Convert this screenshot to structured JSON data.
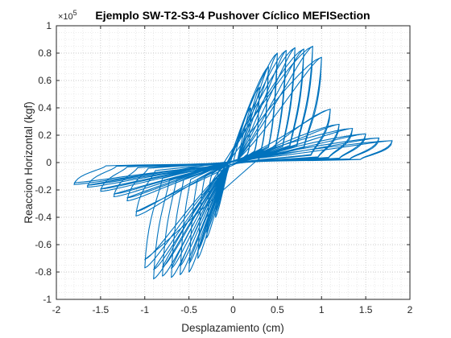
{
  "chart_data": {
    "type": "line",
    "title": "Ejemplo SW-T2-S3-4 Pushover Cíclico MEFISection",
    "xlabel": "Desplazamiento (cm)",
    "ylabel": "Reaccion Horizontal (kgf)",
    "y_exponent_label": "×10",
    "y_exponent_power": "5",
    "xlim": [
      -2,
      2
    ],
    "ylim": [
      -1,
      1
    ],
    "x_ticks": [
      -2,
      -1.5,
      -1,
      -0.5,
      0,
      0.5,
      1,
      1.5,
      2
    ],
    "x_tick_labels": [
      "-2",
      "-1.5",
      "-1",
      "-0.5",
      "0",
      "0.5",
      "1",
      "1.5",
      "2"
    ],
    "y_ticks": [
      -1,
      -0.8,
      -0.6,
      -0.4,
      -0.2,
      0,
      0.2,
      0.4,
      0.6,
      0.8,
      1
    ],
    "y_tick_labels": [
      "-1",
      "-0.8",
      "-0.6",
      "-0.4",
      "-0.2",
      "0",
      "0.2",
      "0.4",
      "0.6",
      "0.8",
      "1"
    ],
    "grid": "major-and-minor-dotted",
    "line_color": "#0072BD",
    "cycles": [
      {
        "dmax": 0.2,
        "fmax": 0.4
      },
      {
        "dmax": 0.3,
        "fmax": 0.55
      },
      {
        "dmax": 0.4,
        "fmax": 0.7
      },
      {
        "dmax": 0.5,
        "fmax": 0.8
      },
      {
        "dmax": 0.6,
        "fmax": 0.82
      },
      {
        "dmax": 0.7,
        "fmax": 0.84
      },
      {
        "dmax": 0.8,
        "fmax": 0.83
      },
      {
        "dmax": 0.9,
        "fmax": 0.85
      },
      {
        "dmax": 1.0,
        "fmax": 0.77
      },
      {
        "dmax": 1.1,
        "fmax": 0.39
      },
      {
        "dmax": 1.2,
        "fmax": 0.28
      },
      {
        "dmax": 1.35,
        "fmax": 0.25
      },
      {
        "dmax": 1.5,
        "fmax": 0.21
      },
      {
        "dmax": 1.65,
        "fmax": 0.18
      },
      {
        "dmax": 1.8,
        "fmax": 0.16
      }
    ]
  }
}
